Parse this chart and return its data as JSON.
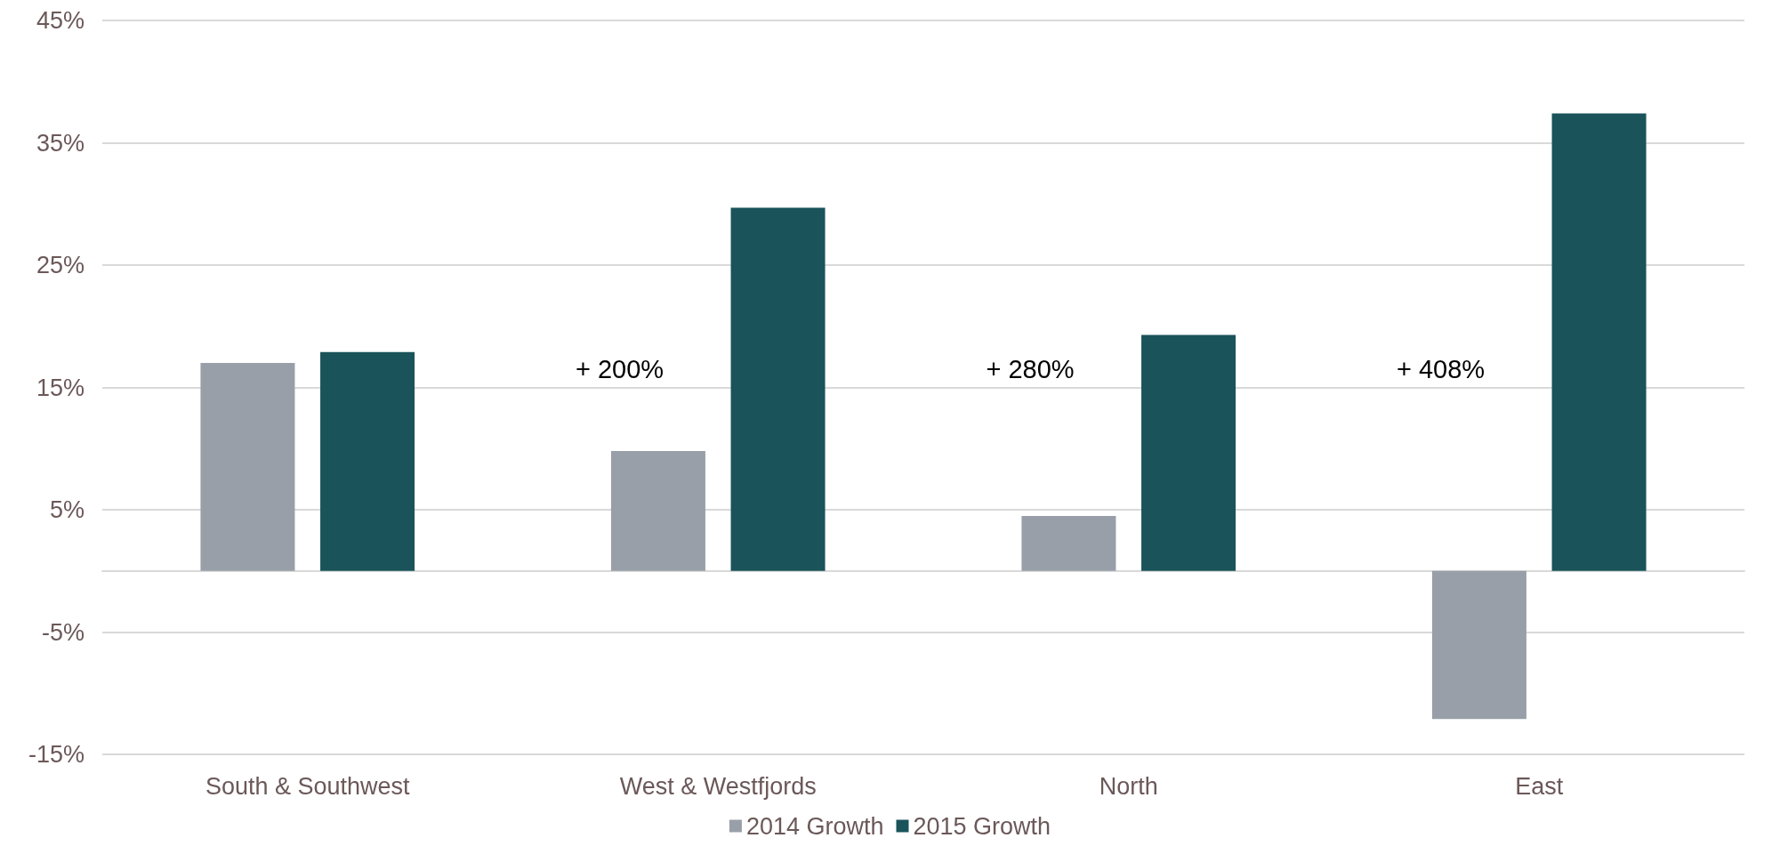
{
  "chart_data": {
    "type": "bar",
    "categories": [
      "South & Southwest",
      "West & Westfjords",
      "North",
      "East"
    ],
    "series": [
      {
        "name": "2014 Growth",
        "color": "#989fa8",
        "values": [
          17.0,
          9.8,
          4.5,
          -12.1
        ]
      },
      {
        "name": "2015 Growth",
        "color": "#1a535a",
        "values": [
          17.9,
          29.7,
          19.3,
          37.4
        ]
      }
    ],
    "ylim": [
      -15,
      45
    ],
    "yticks": [
      {
        "value": -15,
        "label": "-15%"
      },
      {
        "value": -5,
        "label": "-5%"
      },
      {
        "value": 5,
        "label": "5%"
      },
      {
        "value": 15,
        "label": "15%"
      },
      {
        "value": 25,
        "label": "25%"
      },
      {
        "value": 35,
        "label": "35%"
      },
      {
        "value": 45,
        "label": "45%"
      }
    ],
    "annotations": [
      "+ 200%",
      "+ 280%",
      "+ 408%"
    ],
    "grid": "y",
    "legend": "bottom"
  }
}
